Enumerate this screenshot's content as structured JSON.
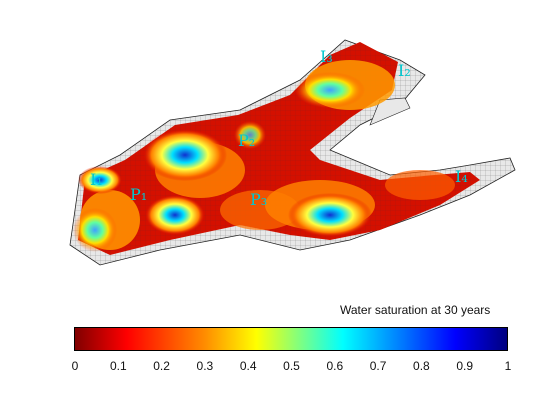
{
  "figure": {
    "title": "Water saturation at 30 years",
    "wells": [
      {
        "label": "I₁",
        "sub": ""
      },
      {
        "label": "P₁",
        "sub": ""
      },
      {
        "label": "P₂",
        "sub": ""
      },
      {
        "label": "P₃",
        "sub": ""
      },
      {
        "label": "I₂",
        "sub": ""
      },
      {
        "label": "I₃",
        "sub": ""
      },
      {
        "label": "I₄",
        "sub": ""
      }
    ]
  },
  "colorbar": {
    "min": 0,
    "max": 1,
    "ticks": [
      "0",
      "0.1",
      "0.2",
      "0.3",
      "0.4",
      "0.5",
      "0.6",
      "0.7",
      "0.8",
      "0.9",
      "1"
    ],
    "colormap": "jet-reversed",
    "colors": [
      "#7f0000",
      "#ff0000",
      "#ff8000",
      "#ffff00",
      "#80ff80",
      "#00ffff",
      "#0080ff",
      "#0000ff",
      "#00007f"
    ]
  }
}
